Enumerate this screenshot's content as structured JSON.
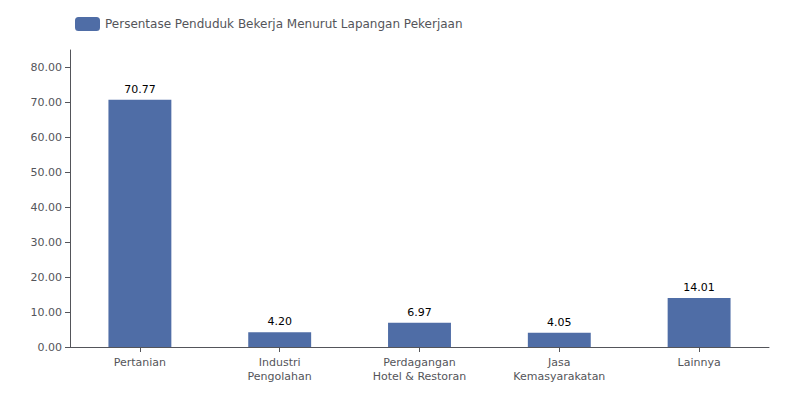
{
  "chart_data": {
    "type": "bar",
    "categories": [
      "Pertanian",
      "Industri\nPengolahan",
      "Perdagangan\nHotel & Restoran",
      "Jasa\nKemasyarakatan",
      "Lainnya"
    ],
    "series": [
      {
        "name": "Persentase Penduduk Bekerja Menurut Lapangan Pekerjaan",
        "color": "#4F6DA6",
        "values": [
          70.77,
          4.2,
          6.97,
          4.05,
          14.01
        ],
        "value_labels": [
          "70.77",
          "4.20",
          "6.97",
          "4.05",
          "14.01"
        ]
      }
    ],
    "ylim": [
      0,
      85
    ],
    "yticks": [
      {
        "value": 0,
        "label": "0.00"
      },
      {
        "value": 10,
        "label": "10.00"
      },
      {
        "value": 20,
        "label": "20.00"
      },
      {
        "value": 30,
        "label": "30.00"
      },
      {
        "value": 40,
        "label": "40.00"
      },
      {
        "value": 50,
        "label": "50.00"
      },
      {
        "value": 60,
        "label": "60.00"
      },
      {
        "value": 70,
        "label": "70.00"
      },
      {
        "value": 80,
        "label": "80.00"
      }
    ],
    "grid": false,
    "legend": "upper left",
    "data_labels": true
  }
}
